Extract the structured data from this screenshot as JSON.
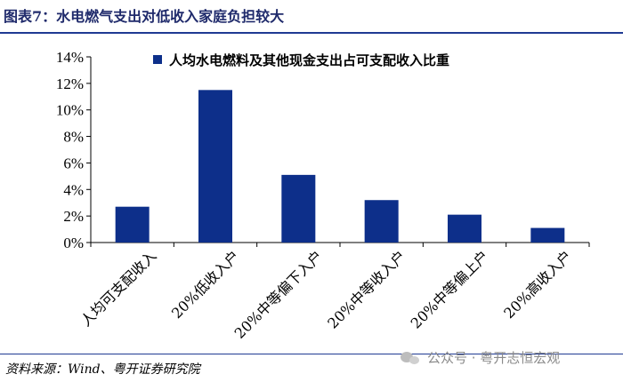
{
  "header": {
    "figure_label": "图表7：",
    "figure_title": "水电燃气支出对低收入家庭负担较大"
  },
  "chart_data": {
    "type": "bar",
    "categories": [
      "人均可支配收入",
      "20%低收入户",
      "20%中等偏下入户",
      "20%中等收入户",
      "20%中等偏上户",
      "20%高收入户"
    ],
    "series": [
      {
        "name": "人均水电燃料及其他现金支出占可支配收入比重",
        "values": [
          2.7,
          11.5,
          5.1,
          3.2,
          2.1,
          1.1
        ]
      }
    ],
    "ylim": [
      0,
      14
    ],
    "yticks": [
      "0%",
      "2%",
      "4%",
      "6%",
      "8%",
      "10%",
      "12%",
      "14%"
    ],
    "legend_position": "top",
    "grid": false,
    "bar_color": "#0d2f8a"
  },
  "footer": {
    "source": "资料来源：Wind、粤开证券研究院",
    "watermark": "公众号 · 粤开志恒宏观"
  }
}
